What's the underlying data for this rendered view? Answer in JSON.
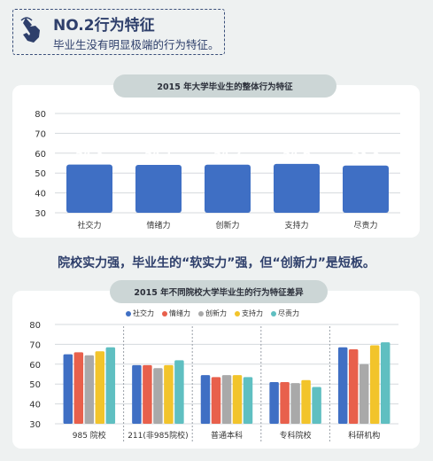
{
  "header": {
    "title": "NO.2行为特征",
    "subtitle": "毕业生没有明显极端的行为特征。",
    "icon": "hand-pointer-icon"
  },
  "middle_text": "院校实力强，毕业生的“软实力”强，但“创新力”是短板。",
  "colors": {
    "bar_blue": "#3f6fc4",
    "series": [
      "#3f6fc4",
      "#e8604c",
      "#a9a9a9",
      "#f2c42b",
      "#5fbfc1"
    ],
    "text_dark": "#2e3f6b"
  },
  "chart_data": [
    {
      "type": "bar",
      "title": "2015 年大学毕业生的整体行为特征",
      "categories": [
        "社交力",
        "情绪力",
        "创新力",
        "支持力",
        "尽责力"
      ],
      "values": [
        54.3,
        54.1,
        54.2,
        54.6,
        53.8
      ],
      "data_labels": [
        "54.3",
        "54.1",
        "54.2",
        "54.6",
        "53.8"
      ],
      "yticks": [
        "80",
        "70",
        "60",
        "50",
        "40",
        "30"
      ],
      "ylim": [
        30,
        80
      ],
      "grid": true,
      "legend": "none"
    },
    {
      "type": "bar",
      "title": "2015 年不同院校大学毕业生的行为特征差异",
      "categories": [
        "985 院校",
        "211(非985院校)",
        "普通本科",
        "专科院校",
        "科研机构"
      ],
      "series": [
        {
          "name": "社交力",
          "values": [
            65,
            59.5,
            54.5,
            51,
            68.5
          ]
        },
        {
          "name": "情绪力",
          "values": [
            66,
            59.5,
            53.5,
            51,
            67.5
          ]
        },
        {
          "name": "创新力",
          "values": [
            64.5,
            58,
            54.5,
            50.5,
            60
          ]
        },
        {
          "name": "支持力",
          "values": [
            66.5,
            59.5,
            54.5,
            52,
            69.5
          ]
        },
        {
          "name": "尽责力",
          "values": [
            68.5,
            62,
            53.5,
            48.5,
            71
          ]
        }
      ],
      "yticks": [
        "80",
        "70",
        "60",
        "50",
        "40",
        "30"
      ],
      "ylim": [
        30,
        80
      ],
      "grid": true,
      "legend": "top"
    }
  ]
}
